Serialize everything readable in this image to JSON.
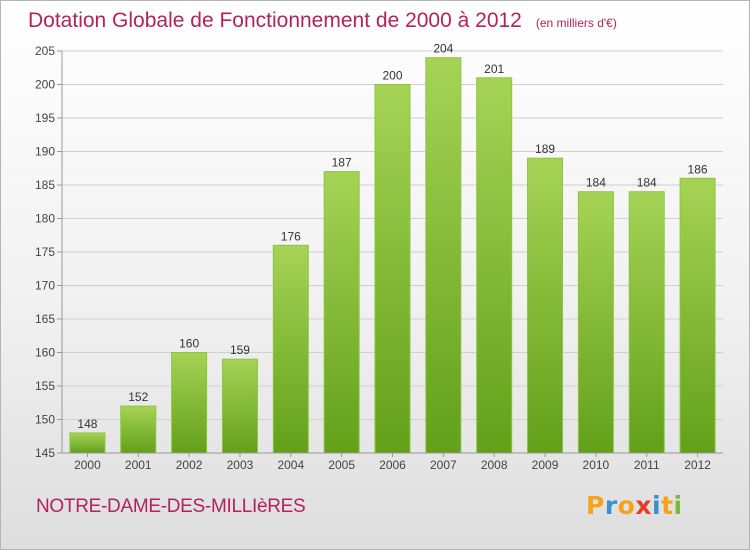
{
  "header": {
    "title": "Dotation Globale de Fonctionnement de 2000 à 2012",
    "unit": "(en milliers d'€)"
  },
  "footer": {
    "commune": "NOTRE-DAME-DES-MILLIèRES",
    "logo": {
      "letters": [
        "P",
        "r",
        "o",
        "x",
        "i",
        "t",
        "i"
      ],
      "colors": [
        "#f7a21b",
        "#3a8fd0",
        "#f7a21b",
        "#e63b2e",
        "#3a8fd0",
        "#f7a21b",
        "#7cb83e"
      ]
    }
  },
  "colors": {
    "bar_top": "#a6d356",
    "bar_bottom": "#62a01a",
    "bar_edge": "#8cc63f",
    "grid": "#cfcfcf",
    "text_accent": "#b3235a"
  },
  "chart_data": {
    "type": "bar",
    "title": "Dotation Globale de Fonctionnement de 2000 à 2012",
    "xlabel": "",
    "ylabel": "",
    "categories": [
      "2000",
      "2001",
      "2002",
      "2003",
      "2004",
      "2005",
      "2006",
      "2007",
      "2008",
      "2009",
      "2010",
      "2011",
      "2012"
    ],
    "values": [
      148,
      152,
      160,
      159,
      176,
      187,
      200,
      204,
      201,
      189,
      184,
      184,
      186
    ],
    "ylim": [
      145,
      205
    ],
    "yticks": [
      145,
      150,
      155,
      160,
      165,
      170,
      175,
      180,
      185,
      190,
      195,
      200,
      205
    ],
    "grid": true,
    "data_labels": true
  }
}
